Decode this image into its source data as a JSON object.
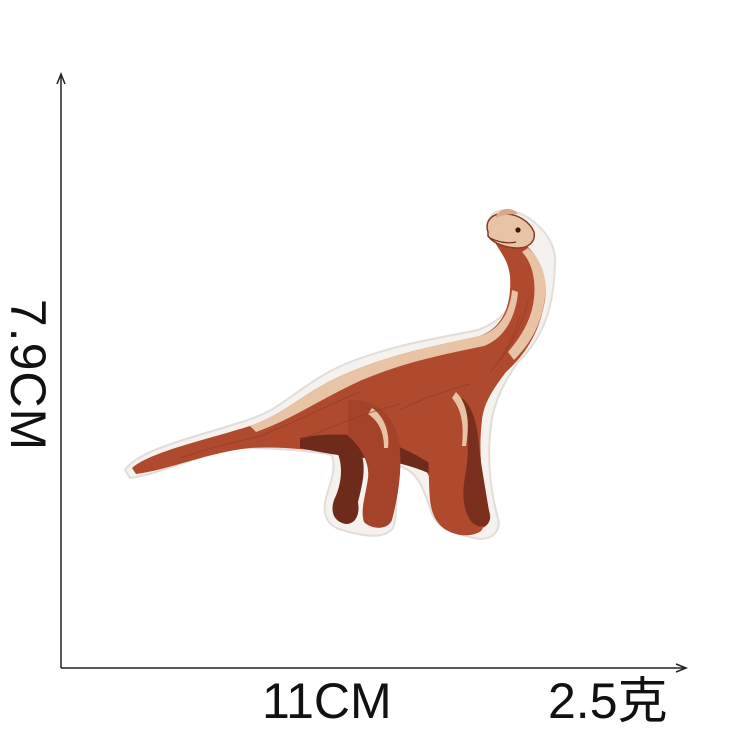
{
  "dimensions": {
    "height_label": "7.9CM",
    "width_label": "11CM",
    "weight_label": "2.5克"
  },
  "product": {
    "subject": "brachiosaurus-embroidered-patch",
    "colors": {
      "body": "#b04a2e",
      "dark": "#6e2a1a",
      "belly": "#8a3a24",
      "highlight": "#e9c3a5",
      "border": "#f4f1ee",
      "axis": "#222222"
    }
  }
}
